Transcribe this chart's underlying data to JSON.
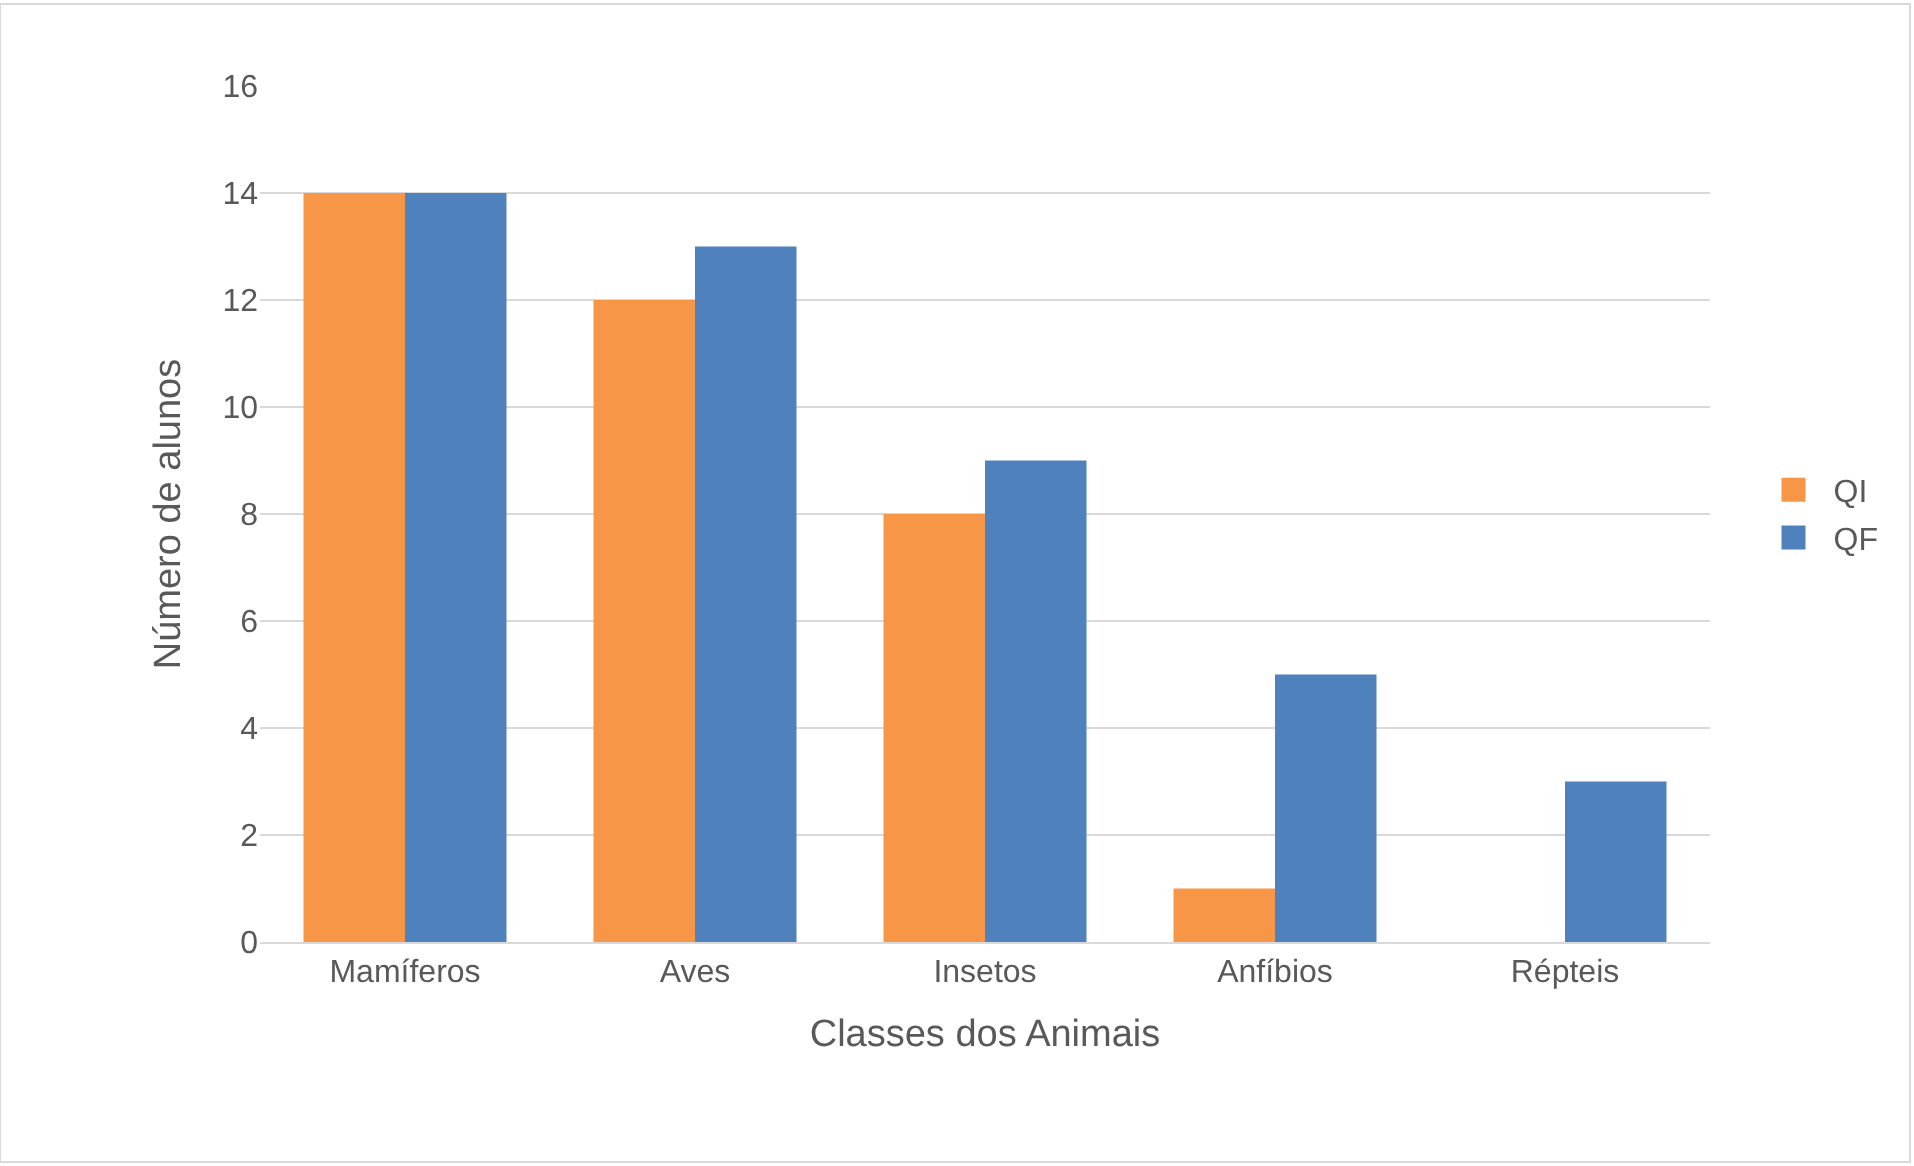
{
  "chart_data": {
    "type": "bar",
    "xlabel": "Classes dos Animais",
    "ylabel": "Número de alunos",
    "categories": [
      "Mamíferos",
      "Aves",
      "Insetos",
      "Anfíbios",
      "Répteis"
    ],
    "series": [
      {
        "name": "QI",
        "color": "#f79646",
        "values": [
          14,
          12,
          8,
          1,
          0
        ]
      },
      {
        "name": "QF",
        "color": "#4f81bd",
        "values": [
          14,
          13,
          9,
          5,
          3
        ]
      }
    ],
    "ylim": [
      0,
      16
    ],
    "yticks": [
      0,
      2,
      4,
      6,
      8,
      10,
      12,
      14,
      16
    ],
    "grid": "y",
    "legend": "right"
  }
}
